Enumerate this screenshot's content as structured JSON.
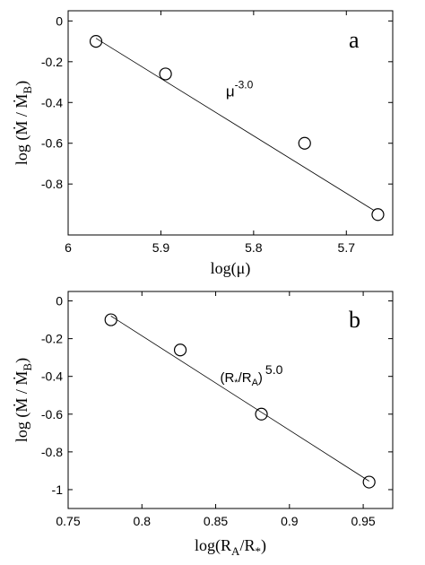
{
  "chart_data": [
    {
      "type": "scatter",
      "panel_label": "a",
      "xlabel": "log(μ)",
      "ylabel": "log (Ṁ / Ṁ",
      "ylabel_sub": "B",
      "xlim": [
        6.0,
        5.65
      ],
      "ylim": [
        -1.05,
        0.05
      ],
      "x_ticks": [
        6.0,
        5.9,
        5.8,
        5.7
      ],
      "x_tick_labels": [
        "6",
        "5.9",
        "5.8",
        "5.7"
      ],
      "y_ticks": [
        0,
        -0.2,
        -0.4,
        -0.6,
        -0.8
      ],
      "y_tick_labels": [
        "0",
        "-0.2",
        "-0.4",
        "-0.6",
        "-0.8"
      ],
      "points": [
        {
          "x": 5.97,
          "y": -0.1
        },
        {
          "x": 5.895,
          "y": -0.26
        },
        {
          "x": 5.745,
          "y": -0.6
        },
        {
          "x": 5.666,
          "y": -0.95
        }
      ],
      "fit_line": {
        "x": [
          5.97,
          5.67
        ],
        "y": [
          -0.085,
          -0.93
        ]
      },
      "annotation": {
        "base": "μ",
        "exp": "-3.0",
        "x": 5.83,
        "y": -0.37
      }
    },
    {
      "type": "scatter",
      "panel_label": "b",
      "xlabel": "log(R",
      "xlabel_sub1": "A",
      "xlabel_mid": "/R",
      "xlabel_sub2": "*",
      "xlabel_end": ")",
      "ylabel": "log (Ṁ / Ṁ",
      "ylabel_sub": "B",
      "xlim": [
        0.75,
        0.97
      ],
      "ylim": [
        -1.1,
        0.05
      ],
      "x_ticks": [
        0.75,
        0.8,
        0.85,
        0.9,
        0.95
      ],
      "x_tick_labels": [
        "0.75",
        "0.8",
        "0.85",
        "0.9",
        "0.95"
      ],
      "y_ticks": [
        0,
        -0.2,
        -0.4,
        -0.6,
        -0.8,
        -1
      ],
      "y_tick_labels": [
        "0",
        "-0.2",
        "-0.4",
        "-0.6",
        "-0.8",
        "-1"
      ],
      "points": [
        {
          "x": 0.779,
          "y": -0.1
        },
        {
          "x": 0.826,
          "y": -0.26
        },
        {
          "x": 0.881,
          "y": -0.6
        },
        {
          "x": 0.954,
          "y": -0.96
        }
      ],
      "fit_line": {
        "x": [
          0.779,
          0.954
        ],
        "y": [
          -0.08,
          -0.955
        ]
      },
      "annotation": {
        "open": "(R",
        "sub1": "*",
        "mid": "/R",
        "sub2": "A",
        "close": ")",
        "exp": "5.0",
        "x": 0.853,
        "y": -0.43
      }
    }
  ]
}
